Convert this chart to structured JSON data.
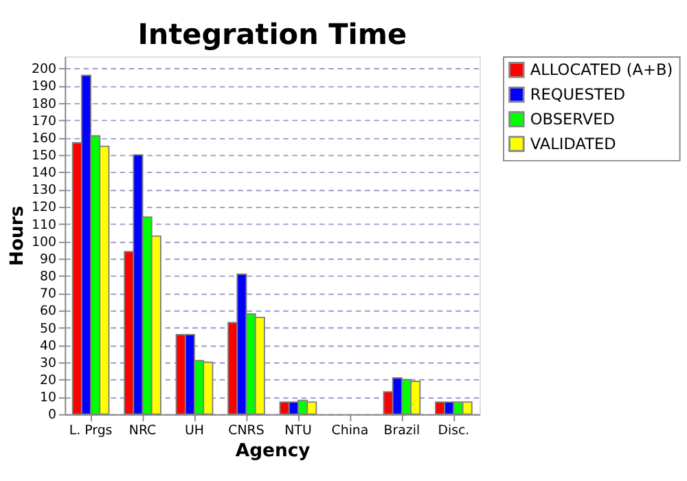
{
  "chart_data": {
    "type": "bar",
    "title": "Integration Time",
    "xlabel": "Agency",
    "ylabel": "Hours",
    "categories": [
      "L. Prgs",
      "NRC",
      "UH",
      "CNRS",
      "NTU",
      "China",
      "Brazil",
      "Disc."
    ],
    "series": [
      {
        "name": "ALLOCATED (A+B)",
        "color": "#ff0000",
        "values": [
          157,
          94,
          46,
          53,
          7,
          null,
          13,
          7
        ]
      },
      {
        "name": "REQUESTED",
        "color": "#0000ff",
        "values": [
          196,
          150,
          46,
          81,
          7,
          null,
          21,
          7
        ]
      },
      {
        "name": "OBSERVED",
        "color": "#00ff00",
        "values": [
          161,
          114,
          31,
          58,
          8,
          null,
          20,
          7
        ]
      },
      {
        "name": "VALIDATED",
        "color": "#ffff00",
        "values": [
          155,
          103,
          30,
          56,
          7,
          null,
          19,
          7
        ]
      }
    ],
    "ylim": [
      0,
      207
    ],
    "yticks": [
      0,
      10,
      20,
      30,
      40,
      50,
      60,
      70,
      80,
      90,
      100,
      110,
      120,
      130,
      140,
      150,
      160,
      170,
      180,
      190,
      200
    ],
    "grid": "y",
    "legend": "right"
  }
}
